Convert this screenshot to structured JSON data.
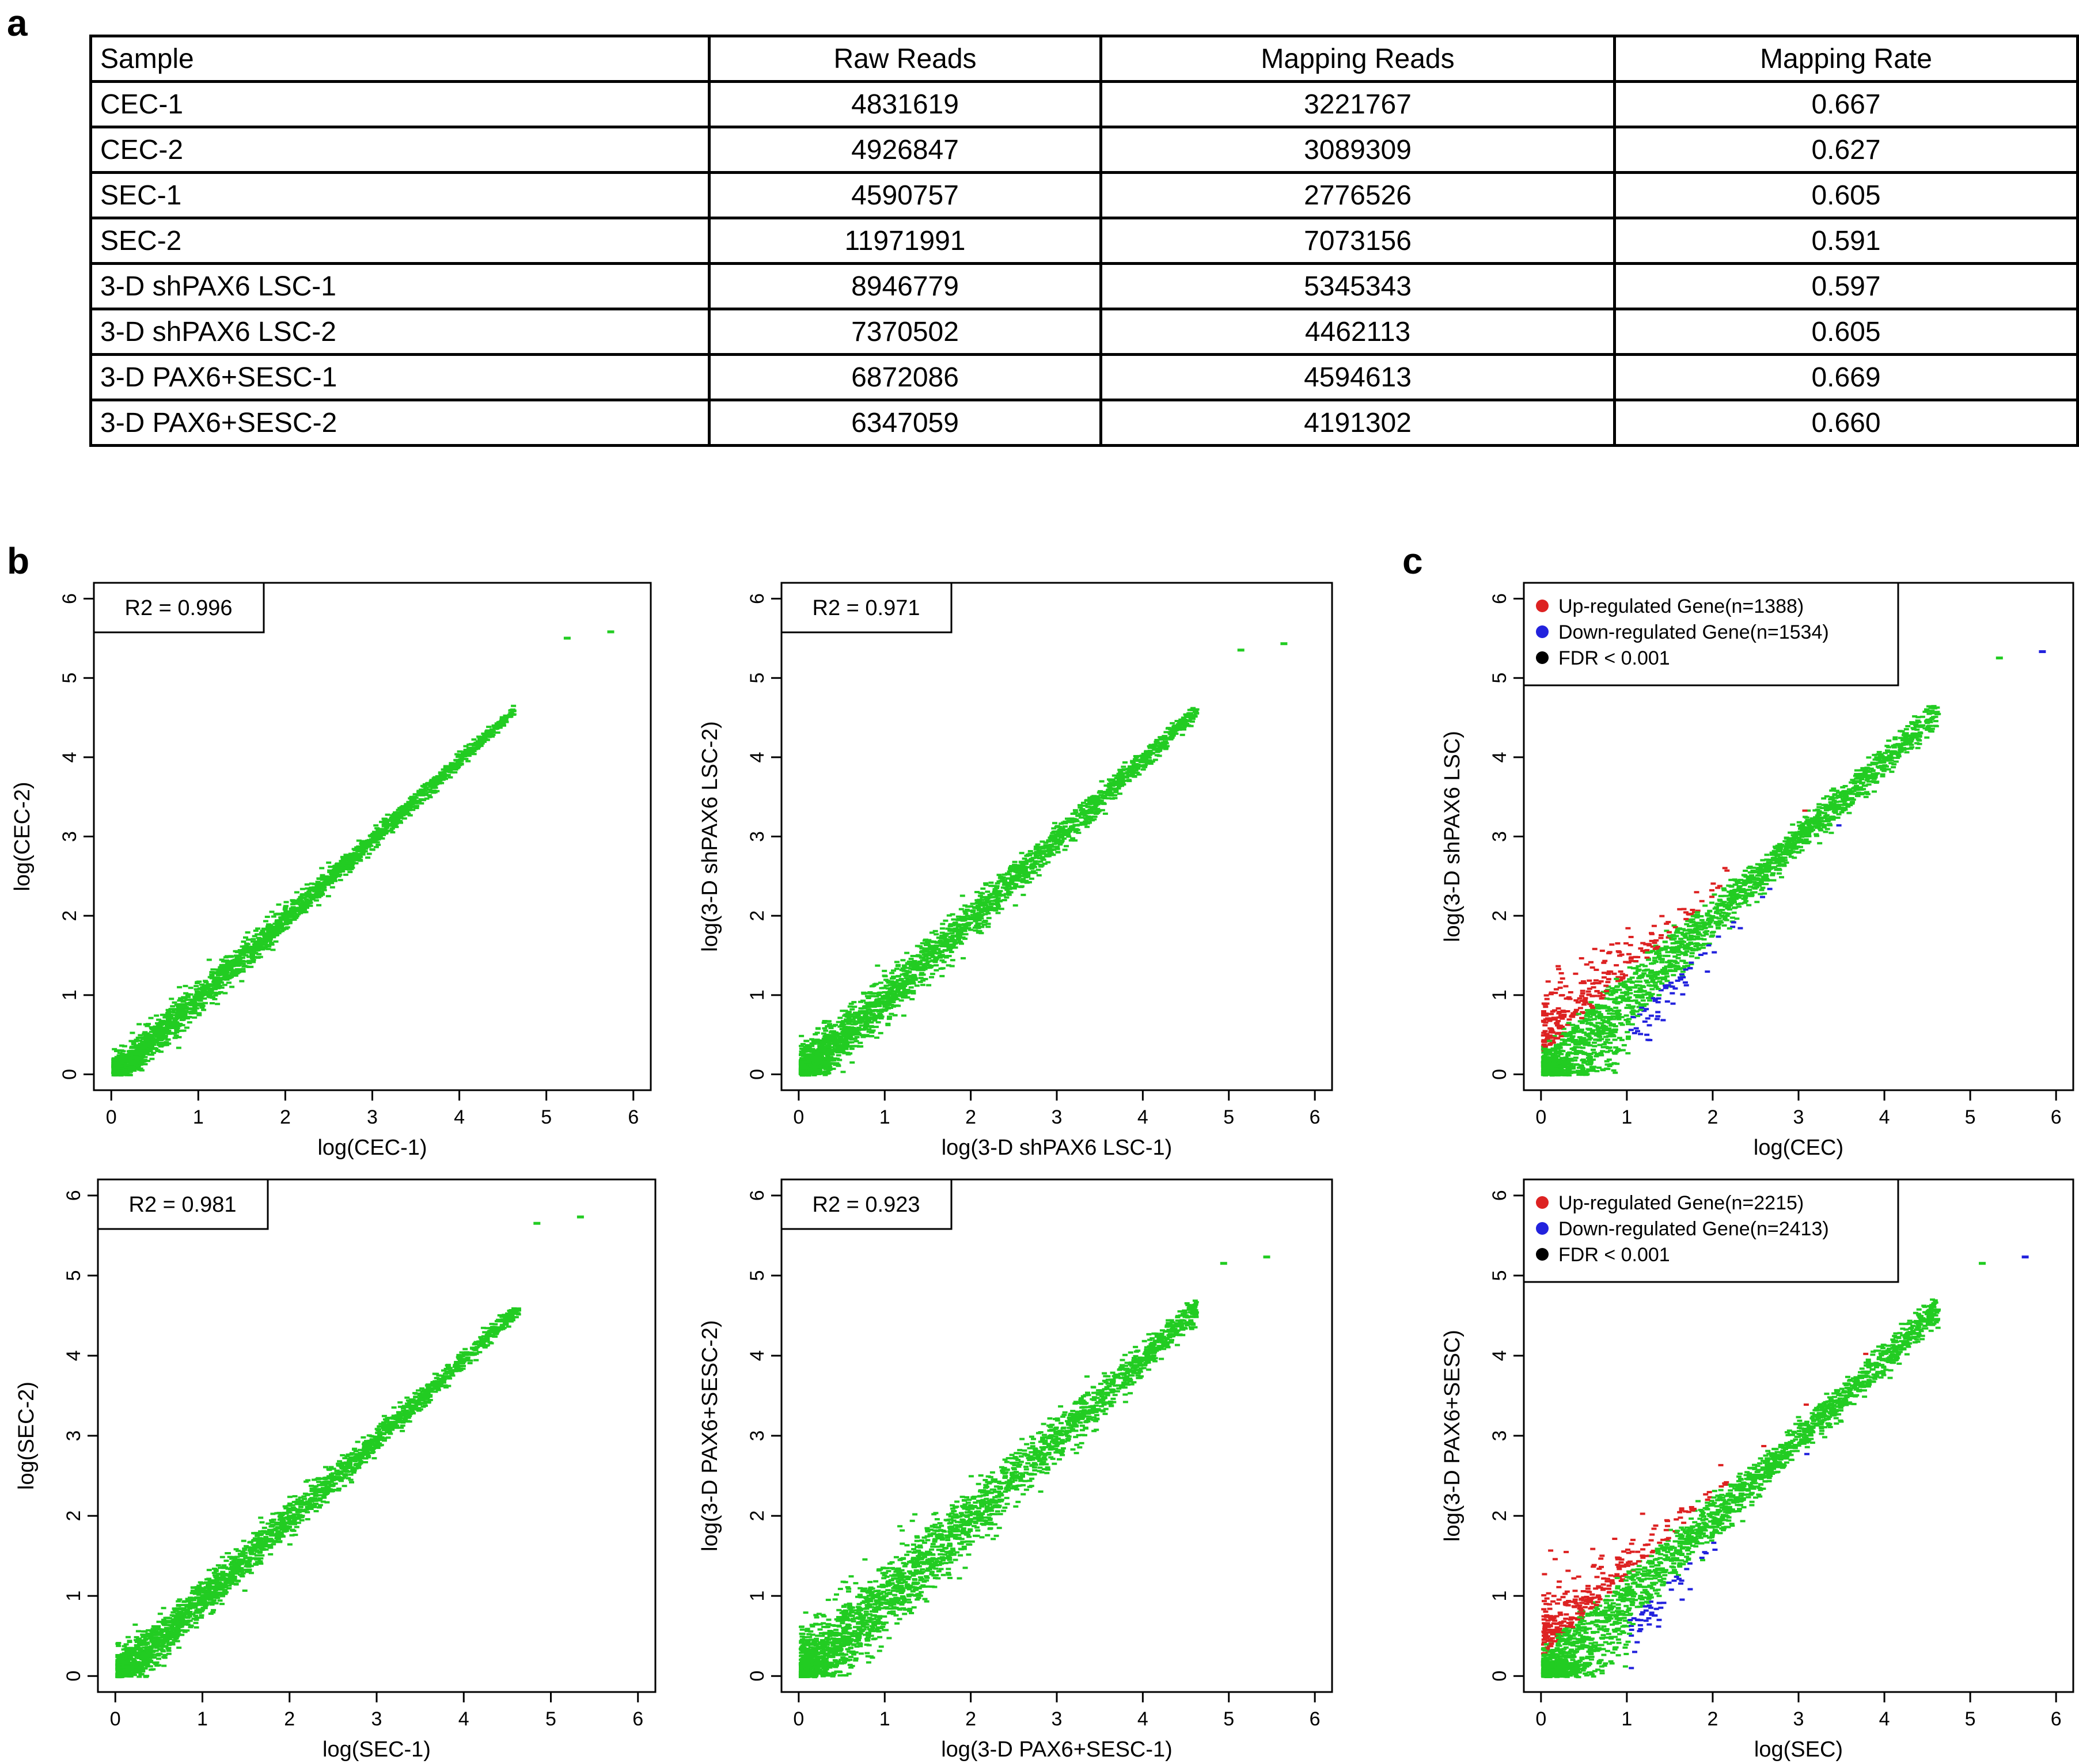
{
  "panel_labels": {
    "a": "a",
    "b": "b",
    "c": "c"
  },
  "table": {
    "headers": [
      "Sample",
      "Raw Reads",
      "Mapping Reads",
      "Mapping Rate"
    ],
    "rows": [
      [
        "CEC-1",
        "4831619",
        "3221767",
        "0.667"
      ],
      [
        "CEC-2",
        "4926847",
        "3089309",
        "0.627"
      ],
      [
        "SEC-1",
        "4590757",
        "2776526",
        "0.605"
      ],
      [
        "SEC-2",
        "11971991",
        "7073156",
        "0.591"
      ],
      [
        "3-D shPAX6 LSC-1",
        "8946779",
        "5345343",
        "0.597"
      ],
      [
        "3-D shPAX6 LSC-2",
        "7370502",
        "4462113",
        "0.605"
      ],
      [
        "3-D PAX6+SESC-1",
        "6872086",
        "4594613",
        "0.669"
      ],
      [
        "3-D PAX6+SESC-2",
        "6347059",
        "4191302",
        "0.660"
      ]
    ]
  },
  "colors": {
    "green": "#22cc22",
    "red": "#dd2222",
    "blue": "#2222dd"
  },
  "chart_data": [
    {
      "type": "scatter",
      "panel": "b",
      "xlabel": "log(CEC-1)",
      "ylabel": "log(CEC-2)",
      "xlim": [
        -0.2,
        6.2
      ],
      "ylim": [
        -0.2,
        6.2
      ],
      "xticks": [
        0,
        1,
        2,
        3,
        4,
        5,
        6
      ],
      "yticks": [
        0,
        1,
        2,
        3,
        4,
        5,
        6
      ],
      "annotation": "R2 =  0.996",
      "r2": 0.996,
      "max_point": [
        5.7,
        5.6
      ],
      "colored": false
    },
    {
      "type": "scatter",
      "panel": "b",
      "xlabel": "log(3-D shPAX6 LSC-1)",
      "ylabel": "log(3-D shPAX6 LSC-2)",
      "xlim": [
        -0.2,
        6.2
      ],
      "ylim": [
        -0.2,
        6.2
      ],
      "xticks": [
        0,
        1,
        2,
        3,
        4,
        5,
        6
      ],
      "yticks": [
        0,
        1,
        2,
        3,
        4,
        5,
        6
      ],
      "annotation": "R2 =  0.971",
      "r2": 0.971,
      "max_point": [
        5.6,
        5.45
      ],
      "colored": false
    },
    {
      "type": "scatter",
      "panel": "c",
      "xlabel": "log(CEC)",
      "ylabel": "log(3-D shPAX6 LSC)",
      "xlim": [
        -0.2,
        6.2
      ],
      "ylim": [
        -0.2,
        6.2
      ],
      "xticks": [
        0,
        1,
        2,
        3,
        4,
        5,
        6
      ],
      "yticks": [
        0,
        1,
        2,
        3,
        4,
        5,
        6
      ],
      "legend": [
        "Up-regulated Gene(n=1388)",
        "Down-regulated Gene(n=1534)",
        "FDR < 0.001"
      ],
      "legend_position": "top-left",
      "up_count": 1388,
      "down_count": 1534,
      "fdr": 0.001,
      "max_point": [
        5.8,
        5.35
      ],
      "colored": true
    },
    {
      "type": "scatter",
      "panel": "b",
      "xlabel": "log(SEC-1)",
      "ylabel": "log(SEC-2)",
      "xlim": [
        -0.2,
        6.2
      ],
      "ylim": [
        -0.2,
        6.2
      ],
      "xticks": [
        0,
        1,
        2,
        3,
        4,
        5,
        6
      ],
      "yticks": [
        0,
        1,
        2,
        3,
        4,
        5,
        6
      ],
      "annotation": "R2 =  0.981",
      "r2": 0.981,
      "max_point": [
        5.3,
        5.75
      ],
      "colored": false
    },
    {
      "type": "scatter",
      "panel": "b",
      "xlabel": "log(3-D PAX6+SESC-1)",
      "ylabel": "log(3-D PAX6+SESC-2)",
      "xlim": [
        -0.2,
        6.2
      ],
      "ylim": [
        -0.2,
        6.2
      ],
      "xticks": [
        0,
        1,
        2,
        3,
        4,
        5,
        6
      ],
      "yticks": [
        0,
        1,
        2,
        3,
        4,
        5,
        6
      ],
      "annotation": "R2 =  0.923",
      "r2": 0.923,
      "max_point": [
        5.4,
        5.25
      ],
      "colored": false
    },
    {
      "type": "scatter",
      "panel": "c",
      "xlabel": "log(SEC)",
      "ylabel": "log(3-D PAX6+SESC)",
      "xlim": [
        -0.2,
        6.2
      ],
      "ylim": [
        -0.2,
        6.2
      ],
      "xticks": [
        0,
        1,
        2,
        3,
        4,
        5,
        6
      ],
      "yticks": [
        0,
        1,
        2,
        3,
        4,
        5,
        6
      ],
      "legend": [
        "Up-regulated Gene(n=2215)",
        "Down-regulated Gene(n=2413)",
        "FDR < 0.001"
      ],
      "legend_position": "top-left",
      "up_count": 2215,
      "down_count": 2413,
      "fdr": 0.001,
      "max_point": [
        5.6,
        5.25
      ],
      "colored": true
    }
  ]
}
